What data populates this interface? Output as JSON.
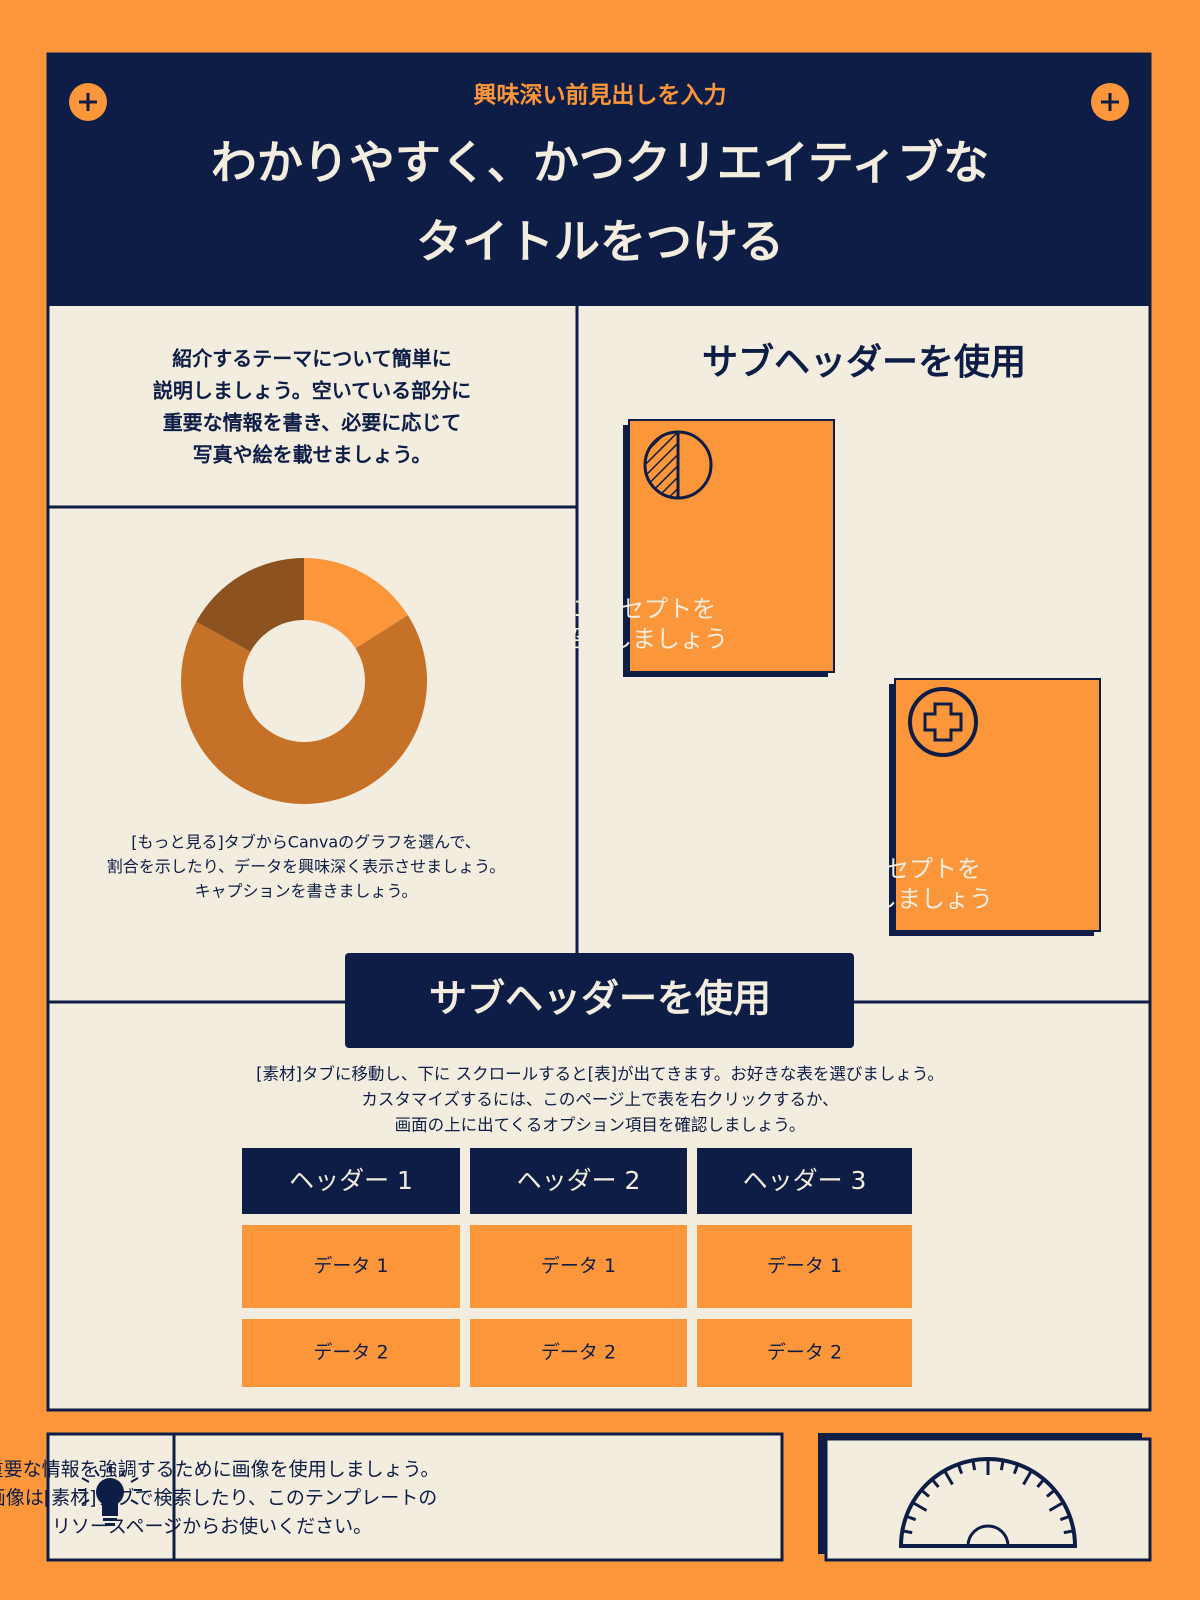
{
  "header": {
    "kicker": "興味深い前見出しを入力",
    "title_lines": [
      "わかりやすく、かつクリエイティブな",
      "タイトルをつける"
    ]
  },
  "intro": {
    "lines": [
      "紹介するテーマについて簡単に",
      "説明しましょう。空いている部分に",
      "重要な情報を書き、必要に応じて",
      "写真や絵を載せましょう。"
    ]
  },
  "chart_data": {
    "type": "donut",
    "values": [
      16,
      67,
      17
    ],
    "colors": [
      "#fb963b",
      "#c57128",
      "#8c521f"
    ]
  },
  "caption": {
    "lines": [
      "[もっと見る]タブからCanvaのグラフを選んで、",
      "割合を示したり、データを興味深く表示させましょう。",
      "キャプションを書きましょう。"
    ]
  },
  "right": {
    "heading": "サブヘッダーを使用",
    "cards": [
      {
        "lines": [
          "コンセプトを",
          "紹介しましょう"
        ]
      },
      {
        "lines": [
          "コンセプトを",
          "紹介しましょう"
        ]
      }
    ]
  },
  "section": {
    "heading": "サブヘッダーを使用",
    "lines": [
      "[素材]タブに移動し、下に スクロールすると[表]が出てきます。お好きな表を選びましょう。",
      "カスタマイズするには、このページ上で表を右クリックするか、",
      "画面の上に出てくるオプション項目を確認しましょう。"
    ]
  },
  "table": {
    "headers": [
      "ヘッダー 1",
      "ヘッダー 2",
      "ヘッダー 3"
    ],
    "rows": [
      [
        "データ 1",
        "データ 1",
        "データ 1"
      ],
      [
        "データ 2",
        "データ 2",
        "データ 2"
      ]
    ]
  },
  "footer": {
    "lines": [
      "重要な情報を強調するために画像を使用しましょう。",
      "画像は[素材]タブで検索したり、このテンプレートの",
      "リソースページからお使いください。"
    ]
  }
}
